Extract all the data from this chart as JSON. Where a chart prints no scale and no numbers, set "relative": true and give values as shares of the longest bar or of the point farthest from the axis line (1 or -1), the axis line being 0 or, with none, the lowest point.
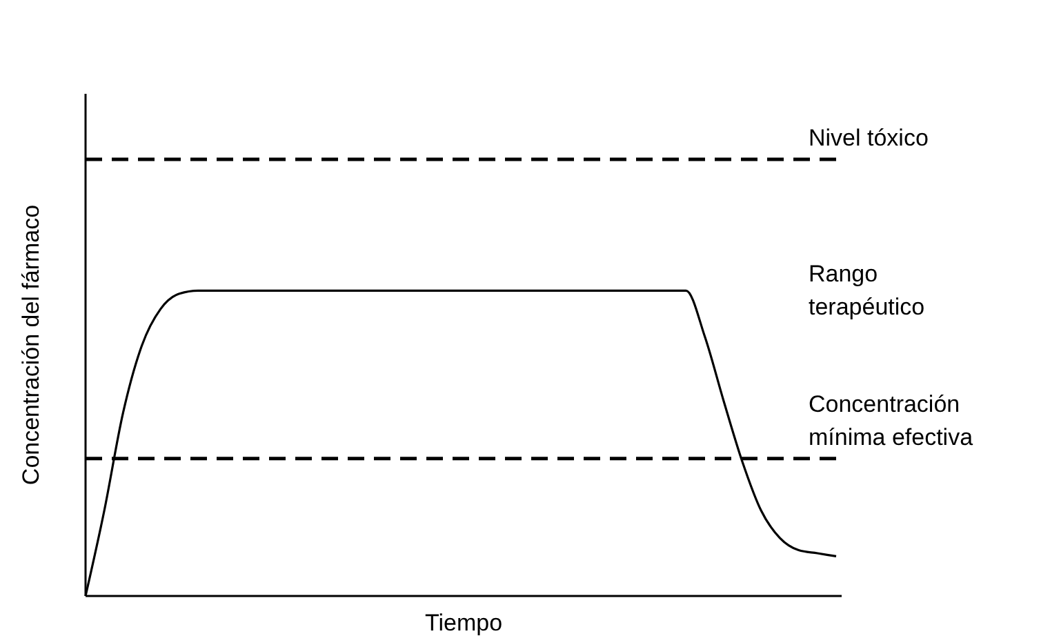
{
  "chart_data": {
    "type": "line",
    "relative": true,
    "xlabel": "Tiempo",
    "ylabel": "Concentración del fármaco",
    "categories": [
      null,
      null,
      null,
      null,
      null,
      null,
      null,
      null,
      null,
      null,
      null,
      null,
      null,
      null,
      null,
      null,
      null,
      null,
      null,
      null,
      null,
      null,
      null,
      null,
      null,
      null,
      null,
      null,
      null,
      null,
      null,
      null,
      null,
      null,
      null,
      null,
      null,
      null,
      null,
      null,
      null
    ],
    "series": [
      {
        "color": "#000000",
        "values": [
          0,
          0.28,
          0.6,
          0.82,
          0.94,
          0.99,
          1,
          1,
          1,
          1,
          1,
          1,
          1,
          1,
          1,
          1,
          1,
          1,
          1,
          1,
          1,
          1,
          1,
          1,
          1,
          1,
          1,
          1,
          1,
          1,
          1,
          1,
          1,
          0.85,
          0.64,
          0.44,
          0.28,
          0.19,
          0.15,
          0.14,
          0.13
        ]
      }
    ],
    "ref_lines": [
      {
        "axis": "y",
        "value": 1.43,
        "label": "Nivel tóxico",
        "color": "#000000",
        "line_style": "dashed"
      },
      {
        "axis": "y",
        "value": 0.45,
        "label": "Concentración mínima efectiva",
        "color": "#000000",
        "line_style": "dashed"
      }
    ],
    "annotations": [
      "Rango terapéutico"
    ]
  }
}
